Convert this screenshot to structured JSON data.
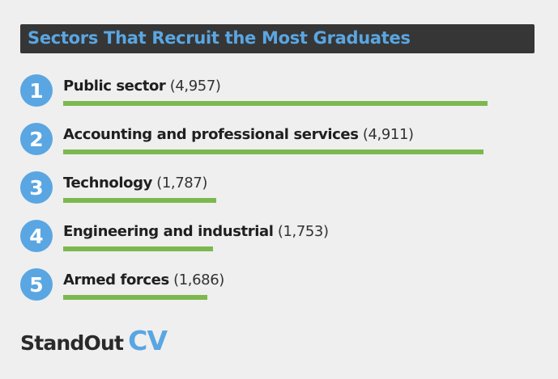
{
  "chart_data": {
    "type": "bar",
    "title": "Sectors That Recruit the Most Graduates",
    "ranks": [
      "1",
      "2",
      "3",
      "4",
      "5"
    ],
    "categories": [
      "Public sector",
      "Accounting and professional services",
      "Technology",
      "Engineering and industrial",
      "Armed forces"
    ],
    "values": [
      4957,
      4911,
      1787,
      1753,
      1686
    ],
    "value_labels": [
      "(4,957)",
      "(4,911)",
      "(1,787)",
      "(1,753)",
      "(1,686)"
    ],
    "xlim": [
      0,
      4957
    ],
    "orientation": "horizontal",
    "grid": false,
    "legend": "none"
  },
  "branding": {
    "word1": "StandOut",
    "word2": "CV"
  },
  "colors": {
    "accent_blue": "#5aa6e2",
    "bar_green": "#7cb84f",
    "title_background": "#363636",
    "page_background": "#efefef"
  }
}
